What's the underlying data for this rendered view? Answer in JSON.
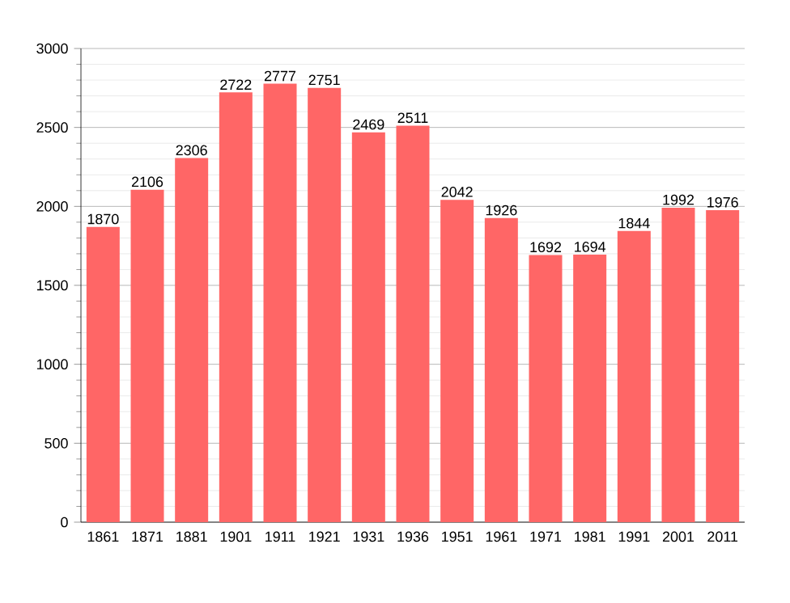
{
  "chart_data": {
    "type": "bar",
    "categories": [
      "1861",
      "1871",
      "1881",
      "1901",
      "1911",
      "1921",
      "1931",
      "1936",
      "1951",
      "1961",
      "1971",
      "1981",
      "1991",
      "2001",
      "2011"
    ],
    "values": [
      1870,
      2106,
      2306,
      2722,
      2777,
      2751,
      2469,
      2511,
      2042,
      1926,
      1692,
      1694,
      1844,
      1992,
      1976
    ],
    "color": "#ff6666",
    "ylim": [
      0,
      3000
    ],
    "yticks": [
      0,
      500,
      1000,
      1500,
      2000,
      2500,
      3000
    ],
    "grid": true,
    "data_labels": true
  }
}
